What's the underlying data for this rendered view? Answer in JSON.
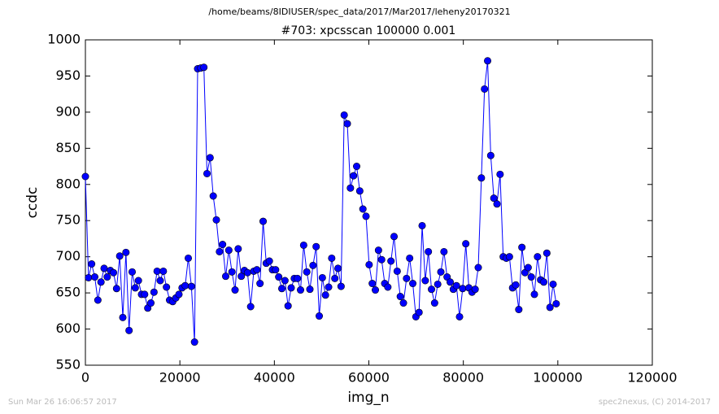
{
  "chart_data": {
    "type": "line",
    "suptitle": "/home/beams/8IDIUSER/spec_data/2017/Mar2017/leheny20170321",
    "title": "#703: xpcsscan 100000 0.001",
    "x_label": "img_n",
    "y_label": "ccdc",
    "footer_left": "Sun Mar 26 16:06:57 2017",
    "footer_right": "spec2nexus, (C) 2014-2017",
    "xlim": [
      0,
      120000
    ],
    "xticks": [
      0,
      20000,
      40000,
      60000,
      80000,
      100000,
      120000
    ],
    "ylim": [
      550,
      1000
    ],
    "yticks": [
      550,
      600,
      650,
      700,
      750,
      800,
      850,
      900,
      950,
      1000
    ],
    "x": [
      0,
      660,
      1320,
      1980,
      2640,
      3300,
      3960,
      4620,
      5280,
      5940,
      6600,
      7260,
      7920,
      8580,
      9240,
      9900,
      10560,
      11220,
      11880,
      12540,
      13200,
      13860,
      14520,
      15180,
      15840,
      16500,
      17160,
      17820,
      18480,
      19140,
      19800,
      20460,
      21120,
      21780,
      22440,
      23100,
      23760,
      24420,
      25080,
      25740,
      26400,
      27060,
      27720,
      28380,
      29040,
      29700,
      30360,
      31020,
      31680,
      32340,
      33000,
      33660,
      34320,
      34980,
      35640,
      36300,
      36960,
      37620,
      38280,
      38940,
      39600,
      40260,
      40920,
      41580,
      42240,
      42900,
      43560,
      44220,
      44880,
      45540,
      46200,
      46860,
      47520,
      48180,
      48840,
      49500,
      50160,
      50820,
      51480,
      52140,
      52800,
      53460,
      54120,
      54780,
      55440,
      56100,
      56760,
      57420,
      58080,
      58740,
      59400,
      60060,
      60720,
      61380,
      62040,
      62700,
      63360,
      64020,
      64680,
      65340,
      66000,
      66660,
      67320,
      67980,
      68640,
      69300,
      69960,
      70620,
      71280,
      71940,
      72600,
      73260,
      73920,
      74580,
      75240,
      75900,
      76560,
      77220,
      77880,
      78540,
      79200,
      79860,
      80520,
      81180,
      81840,
      82500,
      83160,
      83820,
      84480,
      85140,
      85800,
      86460,
      87120,
      87780,
      88440,
      89100,
      89760,
      90420,
      91080,
      91740,
      92400,
      93060,
      93720,
      94380,
      95040,
      95700,
      96360,
      97020,
      97680,
      98340,
      99000,
      99660
    ],
    "series": [
      {
        "color": "#0000ff",
        "values": [
          811,
          671,
          690,
          672,
          640,
          665,
          684,
          672,
          681,
          678,
          656,
          701,
          616,
          706,
          598,
          679,
          657,
          667,
          648,
          648,
          629,
          636,
          651,
          680,
          667,
          680,
          658,
          640,
          638,
          643,
          648,
          657,
          660,
          698,
          659,
          582,
          960,
          961,
          962,
          815,
          837,
          784,
          751,
          707,
          717,
          673,
          709,
          679,
          654,
          711,
          673,
          681,
          678,
          631,
          680,
          682,
          663,
          749,
          691,
          694,
          682,
          682,
          672,
          656,
          667,
          632,
          657,
          670,
          670,
          654,
          716,
          679,
          655,
          688,
          714,
          618,
          671,
          647,
          658,
          698,
          670,
          684,
          659,
          896,
          884,
          795,
          812,
          825,
          791,
          766,
          756,
          689,
          663,
          654,
          709,
          696,
          663,
          658,
          694,
          728,
          680,
          645,
          636,
          670,
          698,
          663,
          617,
          623,
          743,
          667,
          707,
          655,
          636,
          662,
          679,
          707,
          672,
          665,
          655,
          660,
          617,
          656,
          718,
          657,
          651,
          655,
          685,
          809,
          932,
          971,
          840,
          781,
          773,
          814,
          700,
          698,
          700,
          657,
          661,
          627,
          713,
          678,
          685,
          672,
          648,
          700,
          668,
          665,
          705,
          630,
          662,
          635
        ]
      }
    ]
  }
}
